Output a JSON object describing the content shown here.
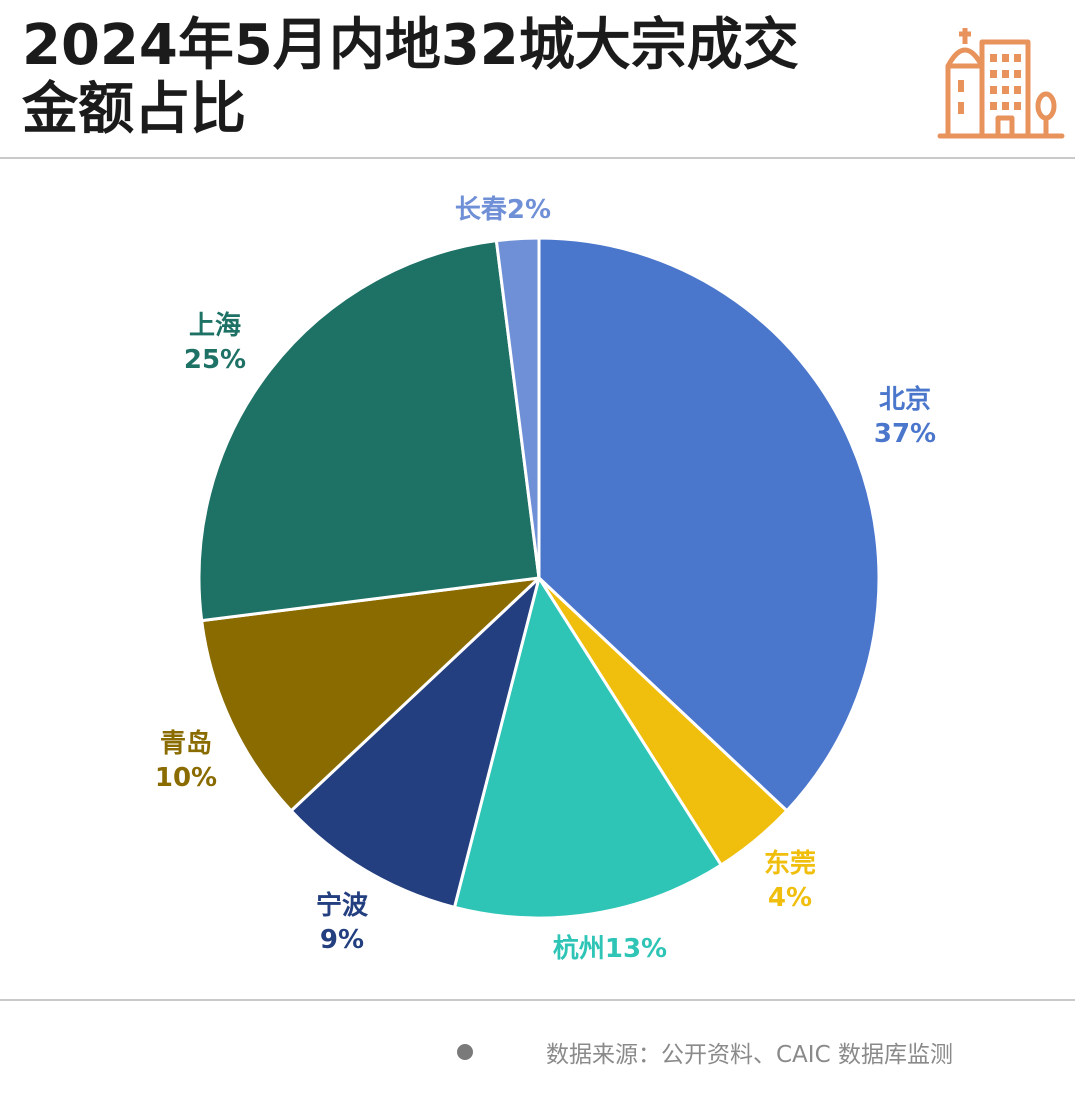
{
  "title": {
    "line1": "2024年5月内地32城大宗成交",
    "line2": "金额占比"
  },
  "header_icon": "city-buildings-icon",
  "source": {
    "bullet_icon": "bullet-icon",
    "text": "数据来源：公开资料、CAIC 数据库监测"
  },
  "colors": {
    "title": "#1b1b1b",
    "icon": "#e8925c",
    "rule": "#c9c9c9",
    "source_text": "#8a8a8a"
  },
  "chart_data": {
    "type": "pie",
    "title": "2024年5月内地32城大宗成交金额占比",
    "start_angle": "12 o'clock",
    "direction": "clockwise",
    "slices": [
      {
        "name": "北京",
        "value": 37,
        "label": "37%",
        "color": "#4a76cc"
      },
      {
        "name": "东莞",
        "value": 4,
        "label": "4%",
        "color": "#f0be0c"
      },
      {
        "name": "杭州",
        "value": 13,
        "label": "杭州13%",
        "color": "#2ec4b6"
      },
      {
        "name": "宁波",
        "value": 9,
        "label": "9%",
        "color": "#233f80"
      },
      {
        "name": "青岛",
        "value": 10,
        "label": "10%",
        "color": "#8a6b00"
      },
      {
        "name": "上海",
        "value": 25,
        "label": "25%",
        "color": "#1e7165"
      },
      {
        "name": "长春",
        "value": 2,
        "label": "长春2%",
        "color": "#6f8fd6"
      }
    ]
  }
}
